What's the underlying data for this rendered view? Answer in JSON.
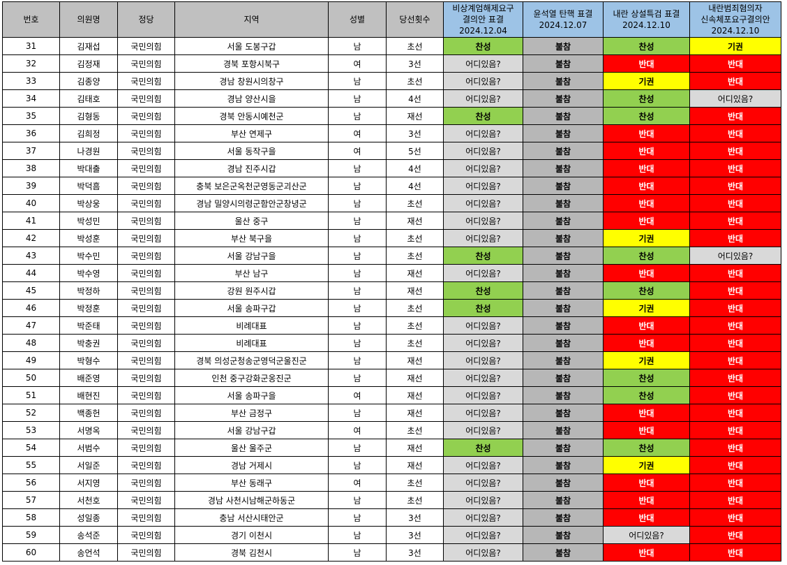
{
  "headers": [
    {
      "key": "no",
      "label": "번호"
    },
    {
      "key": "name",
      "label": "의원명"
    },
    {
      "key": "party",
      "label": "정당"
    },
    {
      "key": "region",
      "label": "지역"
    },
    {
      "key": "gender",
      "label": "성별"
    },
    {
      "key": "terms",
      "label": "당선횟수"
    },
    {
      "key": "v1",
      "line1": "비상계엄해제요구",
      "line2": "결의안 표결",
      "line3": "2024.12.04"
    },
    {
      "key": "v2",
      "line1": "윤석열 탄핵 표결",
      "line2": "2024.12.07"
    },
    {
      "key": "v3",
      "line1": "내란 상설특검 표결",
      "line2": "2024.12.10"
    },
    {
      "key": "v4",
      "line1": "내란범죄혐의자",
      "line2": "신속체포요구결의안",
      "line3": "2024.12.10"
    }
  ],
  "colors": {
    "찬성": "#92d050",
    "기권": "#ffff00",
    "반대": "#ff0000",
    "어디있음?": "#d9d9d9",
    "불참": "#b7b7b7",
    "header": "#c0c0c0",
    "vote_header": "#9dc3e6"
  },
  "rows": [
    [
      "31",
      "김재섭",
      "국민의힘",
      "서울 도봉구갑",
      "남",
      "초선",
      "찬성",
      "불참",
      "찬성",
      "기권"
    ],
    [
      "32",
      "김정재",
      "국민의힘",
      "경북 포항시북구",
      "여",
      "3선",
      "어디있음?",
      "불참",
      "반대",
      "반대"
    ],
    [
      "33",
      "김종양",
      "국민의힘",
      "경남 창원시의창구",
      "남",
      "초선",
      "어디있음?",
      "불참",
      "기권",
      "반대"
    ],
    [
      "34",
      "김태호",
      "국민의힘",
      "경남 양산시을",
      "남",
      "4선",
      "어디있음?",
      "불참",
      "찬성",
      "어디있음?"
    ],
    [
      "35",
      "김형동",
      "국민의힘",
      "경북 안동시예천군",
      "남",
      "재선",
      "찬성",
      "불참",
      "찬성",
      "반대"
    ],
    [
      "36",
      "김희정",
      "국민의힘",
      "부산 연제구",
      "여",
      "3선",
      "어디있음?",
      "불참",
      "반대",
      "반대"
    ],
    [
      "37",
      "나경원",
      "국민의힘",
      "서울 동작구을",
      "여",
      "5선",
      "어디있음?",
      "불참",
      "반대",
      "반대"
    ],
    [
      "38",
      "박대출",
      "국민의힘",
      "경남 진주시갑",
      "남",
      "4선",
      "어디있음?",
      "불참",
      "반대",
      "반대"
    ],
    [
      "39",
      "박덕흠",
      "국민의힘",
      "충북 보은군옥천군영동군괴산군",
      "남",
      "4선",
      "어디있음?",
      "불참",
      "반대",
      "반대"
    ],
    [
      "40",
      "박상웅",
      "국민의힘",
      "경남 밀양시의령군함안군창녕군",
      "남",
      "초선",
      "어디있음?",
      "불참",
      "반대",
      "반대"
    ],
    [
      "41",
      "박성민",
      "국민의힘",
      "울산 중구",
      "남",
      "재선",
      "어디있음?",
      "불참",
      "반대",
      "반대"
    ],
    [
      "42",
      "박성훈",
      "국민의힘",
      "부산 북구을",
      "남",
      "초선",
      "어디있음?",
      "불참",
      "기권",
      "반대"
    ],
    [
      "43",
      "박수민",
      "국민의힘",
      "서울 강남구을",
      "남",
      "초선",
      "찬성",
      "불참",
      "찬성",
      "어디있음?"
    ],
    [
      "44",
      "박수영",
      "국민의힘",
      "부산 남구",
      "남",
      "재선",
      "어디있음?",
      "불참",
      "반대",
      "반대"
    ],
    [
      "45",
      "박정하",
      "국민의힘",
      "강원 원주시갑",
      "남",
      "재선",
      "찬성",
      "불참",
      "찬성",
      "반대"
    ],
    [
      "46",
      "박정훈",
      "국민의힘",
      "서울 송파구갑",
      "남",
      "초선",
      "찬성",
      "불참",
      "기권",
      "반대"
    ],
    [
      "47",
      "박준태",
      "국민의힘",
      "비례대표",
      "남",
      "초선",
      "어디있음?",
      "불참",
      "반대",
      "반대"
    ],
    [
      "48",
      "박충권",
      "국민의힘",
      "비례대표",
      "남",
      "초선",
      "어디있음?",
      "불참",
      "반대",
      "반대"
    ],
    [
      "49",
      "박형수",
      "국민의힘",
      "경북 의성군청송군영덕군울진군",
      "남",
      "재선",
      "어디있음?",
      "불참",
      "기권",
      "반대"
    ],
    [
      "50",
      "배준영",
      "국민의힘",
      "인천 중구강화군옹진군",
      "남",
      "재선",
      "어디있음?",
      "불참",
      "찬성",
      "반대"
    ],
    [
      "51",
      "배현진",
      "국민의힘",
      "서울 송파구을",
      "여",
      "재선",
      "어디있음?",
      "불참",
      "찬성",
      "반대"
    ],
    [
      "52",
      "백종헌",
      "국민의힘",
      "부산 금정구",
      "남",
      "재선",
      "어디있음?",
      "불참",
      "반대",
      "반대"
    ],
    [
      "53",
      "서명옥",
      "국민의힘",
      "서울 강남구갑",
      "여",
      "초선",
      "어디있음?",
      "불참",
      "반대",
      "반대"
    ],
    [
      "54",
      "서범수",
      "국민의힘",
      "울산 울주군",
      "남",
      "재선",
      "찬성",
      "불참",
      "찬성",
      "반대"
    ],
    [
      "55",
      "서일준",
      "국민의힘",
      "경남 거제시",
      "남",
      "재선",
      "어디있음?",
      "불참",
      "기권",
      "반대"
    ],
    [
      "56",
      "서지영",
      "국민의힘",
      "부산 동래구",
      "여",
      "초선",
      "어디있음?",
      "불참",
      "반대",
      "반대"
    ],
    [
      "57",
      "서천호",
      "국민의힘",
      "경남 사천시남해군하동군",
      "남",
      "초선",
      "어디있음?",
      "불참",
      "반대",
      "반대"
    ],
    [
      "58",
      "성일종",
      "국민의힘",
      "충남 서산시태안군",
      "남",
      "3선",
      "어디있음?",
      "불참",
      "반대",
      "반대"
    ],
    [
      "59",
      "송석준",
      "국민의힘",
      "경기 이천시",
      "남",
      "3선",
      "어디있음?",
      "불참",
      "어디있음?",
      "반대"
    ],
    [
      "60",
      "송언석",
      "국민의힘",
      "경북 김천시",
      "남",
      "3선",
      "어디있음?",
      "불참",
      "반대",
      "반대"
    ]
  ]
}
